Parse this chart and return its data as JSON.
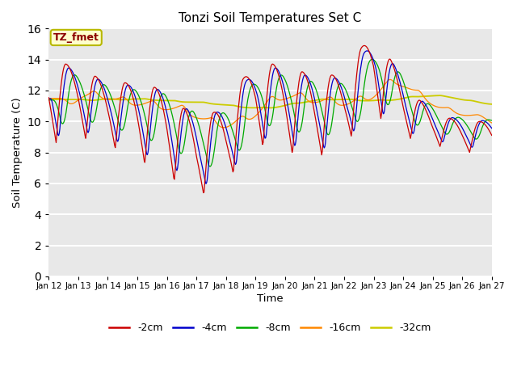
{
  "title": "Tonzi Soil Temperatures Set C",
  "xlabel": "Time",
  "ylabel": "Soil Temperature (C)",
  "ylim": [
    0,
    16
  ],
  "yticks": [
    0,
    2,
    4,
    6,
    8,
    10,
    12,
    14,
    16
  ],
  "bg_color": "#e8e8e8",
  "grid_color": "white",
  "annotation_text": "TZ_fmet",
  "annotation_color": "#8b0000",
  "annotation_bg": "#ffffcc",
  "annotation_edge": "#b8b800",
  "series_colors": {
    "-2cm": "#cc0000",
    "-4cm": "#0000cc",
    "-8cm": "#00aa00",
    "-16cm": "#ff8800",
    "-32cm": "#cccc00"
  },
  "legend_labels": [
    "-2cm",
    "-4cm",
    "-8cm",
    "-16cm",
    "-32cm"
  ],
  "x_tick_labels": [
    "Jan 12",
    "Jan 13",
    "Jan 14",
    "Jan 15",
    "Jan 16",
    "Jan 17",
    "Jan 18",
    "Jan 19",
    "Jan 20",
    "Jan 21",
    "Jan 22",
    "Jan 23",
    "Jan 24",
    "Jan 25",
    "Jan 26",
    "Jan 27"
  ],
  "n_days": 16,
  "points_per_day": 48
}
